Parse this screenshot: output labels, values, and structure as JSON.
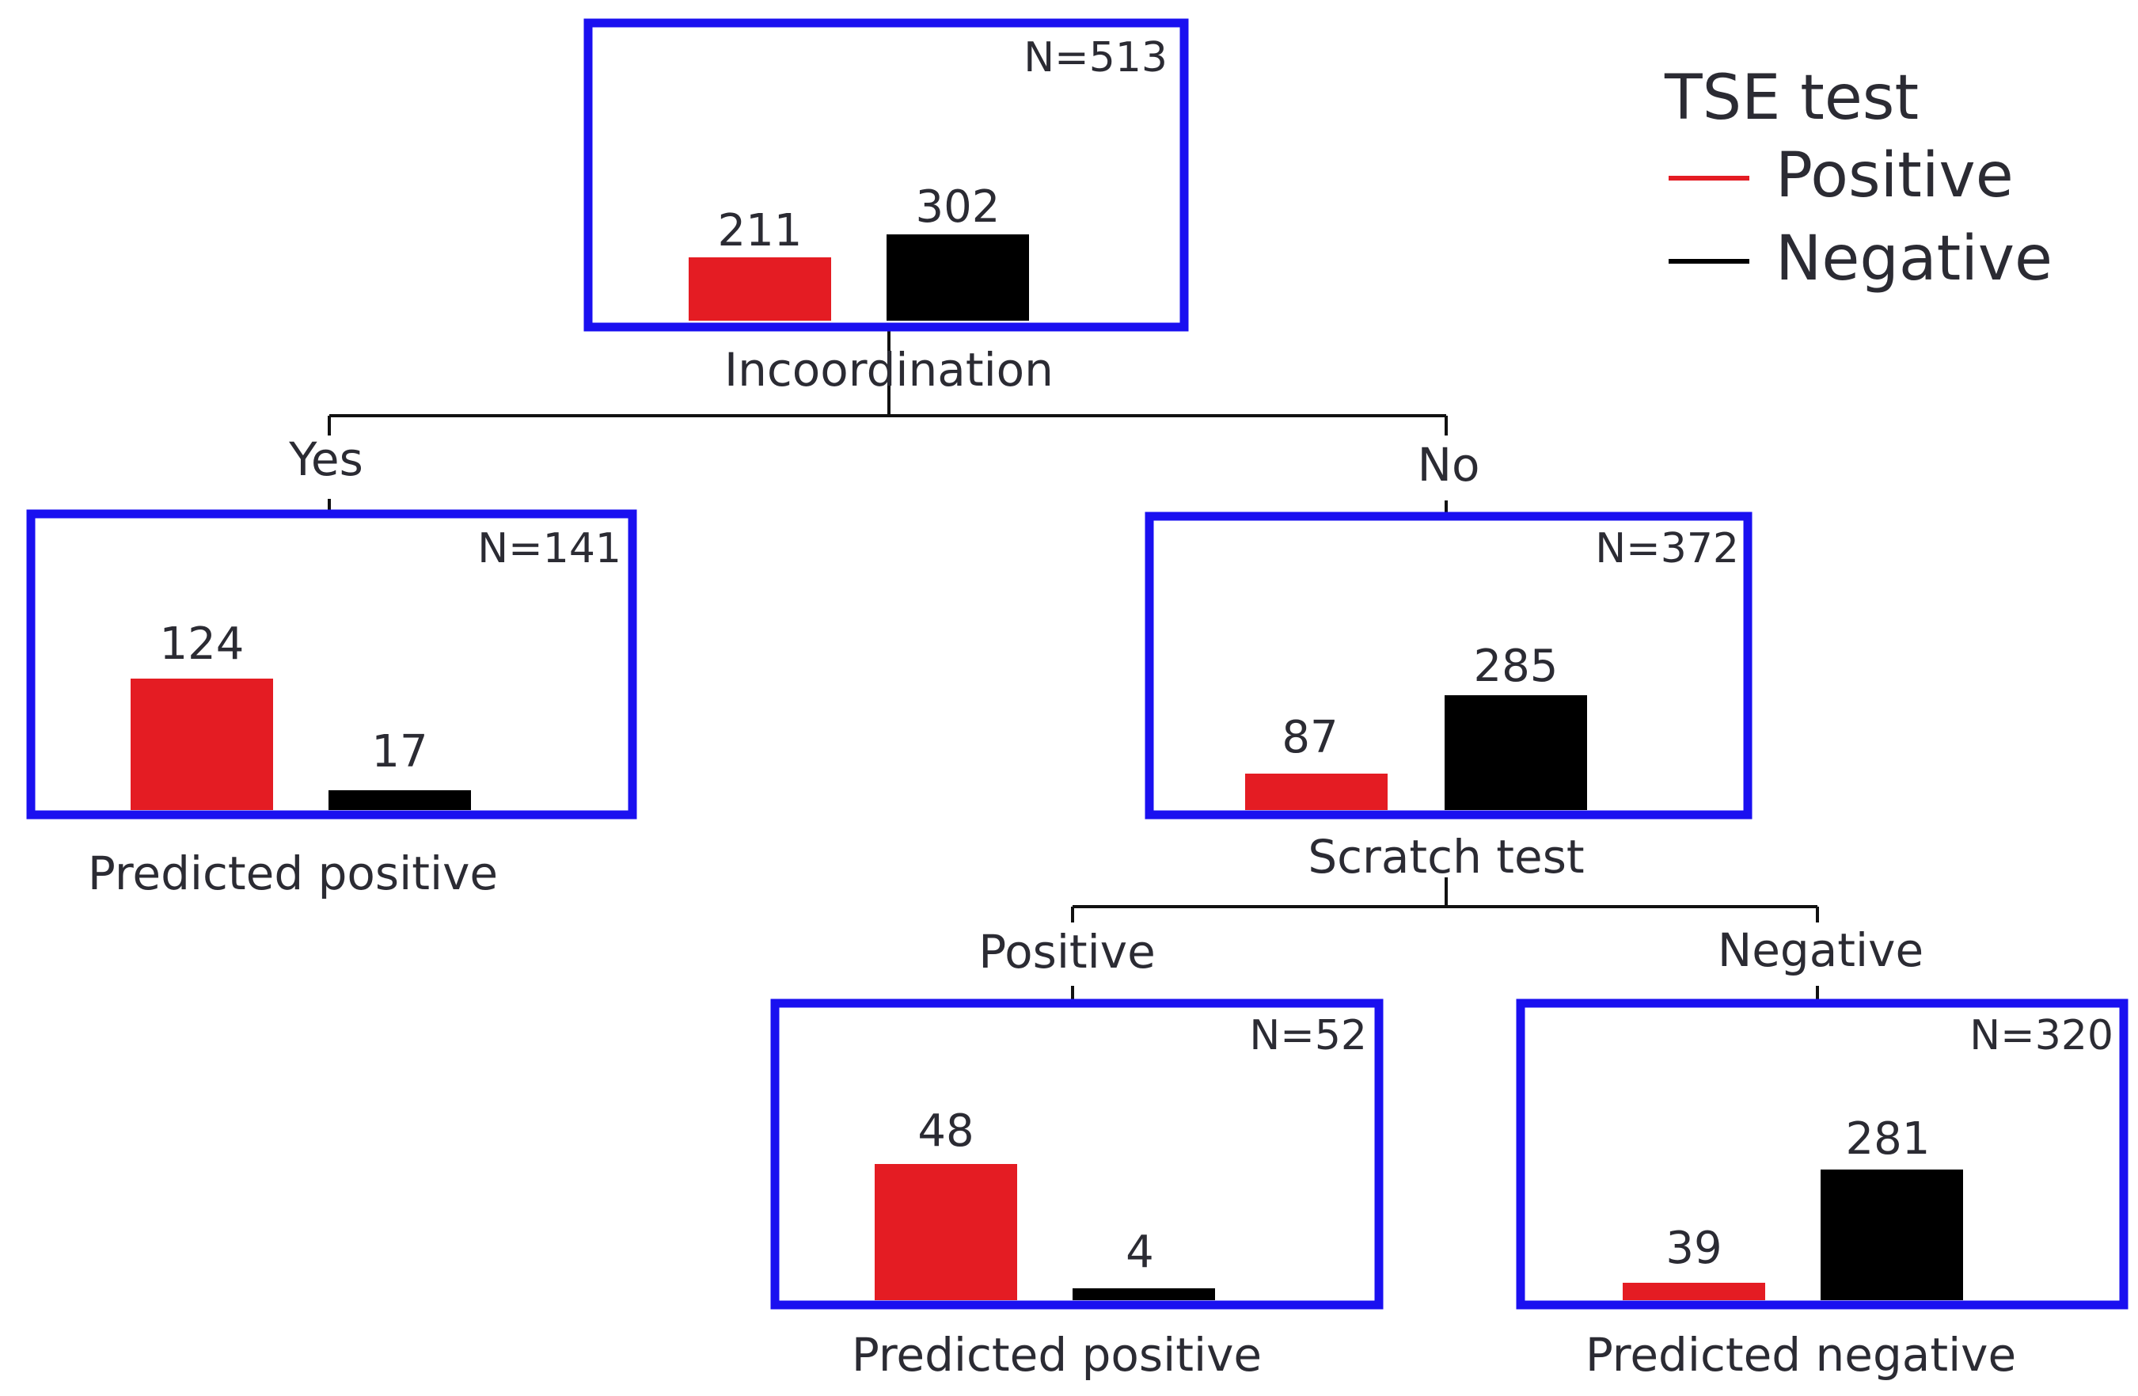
{
  "colors": {
    "positive": "#e41c23",
    "negative": "#000000",
    "frame": "#1a10f0",
    "text": "#2b2b33"
  },
  "legend": {
    "title": "TSE test",
    "items": [
      {
        "label": "Positive",
        "color": "#e41c23"
      },
      {
        "label": "Negative",
        "color": "#000000"
      }
    ]
  },
  "tree": {
    "root": {
      "n_label": "N=513",
      "positive": 211,
      "negative": 302,
      "split_label": "Incoordination"
    },
    "yes_branch": {
      "edge_label": "Yes",
      "n_label": "N=141",
      "positive": 124,
      "negative": 17,
      "outcome": "Predicted positive"
    },
    "no_branch": {
      "edge_label": "No",
      "n_label": "N=372",
      "positive": 87,
      "negative": 285,
      "split_label": "Scratch test"
    },
    "scratch_positive": {
      "edge_label": "Positive",
      "n_label": "N=52",
      "positive": 48,
      "negative": 4,
      "outcome": "Predicted positive"
    },
    "scratch_negative": {
      "edge_label": "Negative",
      "n_label": "N=320",
      "positive": 39,
      "negative": 281,
      "outcome": "Predicted negative"
    }
  },
  "chart_data": {
    "type": "bar",
    "title": "",
    "scale_note": "bar heights proportional to counts",
    "categories": [
      "Positive",
      "Negative"
    ],
    "nodes": [
      {
        "name": "root",
        "n": 513,
        "values": [
          211,
          302
        ]
      },
      {
        "name": "Incoordination = Yes",
        "n": 141,
        "values": [
          124,
          17
        ]
      },
      {
        "name": "Incoordination = No",
        "n": 372,
        "values": [
          87,
          285
        ]
      },
      {
        "name": "Scratch test = Positive",
        "n": 52,
        "values": [
          48,
          4
        ]
      },
      {
        "name": "Scratch test = Negative",
        "n": 320,
        "values": [
          39,
          281
        ]
      }
    ]
  }
}
